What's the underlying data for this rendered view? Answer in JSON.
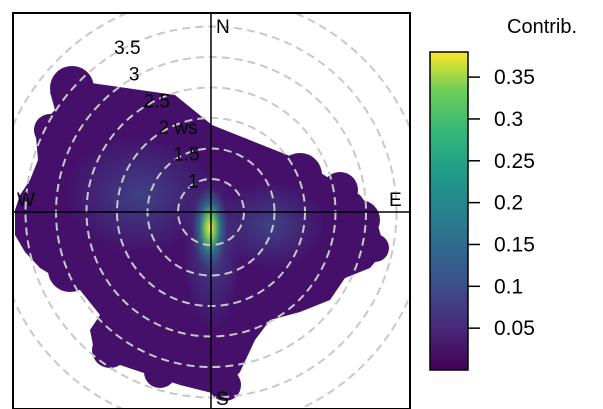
{
  "chart_data": {
    "type": "heatmap",
    "subtype": "polar-annulus",
    "title": "",
    "directions": [
      "N",
      "E",
      "S",
      "W"
    ],
    "radial_axis": {
      "unit": "ws",
      "tick_labels": [
        "1",
        "1.5",
        "2 ws",
        "2.5",
        "3",
        "3.5"
      ],
      "values": [
        1,
        1.5,
        2,
        2.5,
        3,
        3.5
      ]
    },
    "colorbar": {
      "title": "Contrib.",
      "tick_labels": [
        "0.35",
        "0.3",
        "0.25",
        "0.2",
        "0.15",
        "0.1",
        "0.05"
      ],
      "ticks": [
        0.35,
        0.3,
        0.25,
        0.2,
        0.15,
        0.1,
        0.05
      ],
      "range": [
        0.0,
        0.38
      ],
      "colormap": "viridis"
    },
    "hotspot": {
      "direction": "S",
      "ws": 1,
      "value": 0.36
    },
    "grid": true
  },
  "colors": {
    "background": "#ffffff",
    "axis": "#000000",
    "grid": "#c8c8c8",
    "low": "#44106a",
    "high": "#fde725"
  }
}
